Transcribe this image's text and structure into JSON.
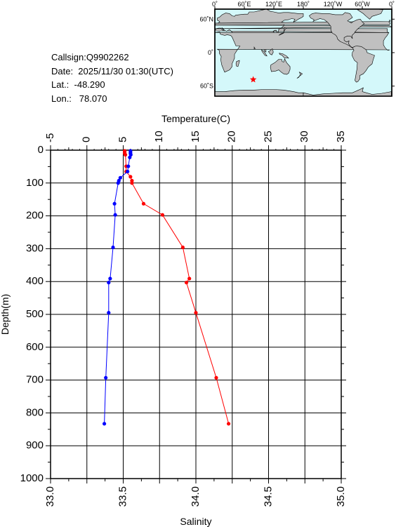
{
  "info": {
    "callsign": "Callsign:Q9902262",
    "date": "Date:  2025/11/30 01:30(UTC)",
    "lat": "Lat.:  -48.290",
    "lon": "Lon.:   78.070"
  },
  "map": {
    "top_labels": [
      "0˚",
      "60˚E",
      "120˚E",
      "180˚",
      "120˚W",
      "60˚W",
      "0˚"
    ],
    "right_labels": [
      "60˚N",
      "0˚",
      "60˚S"
    ],
    "ocean_color": "#d4f8fa",
    "land_color": "#c0c0c0",
    "marker_color": "#ff0000",
    "marker_lon": 78.07,
    "marker_lat": -48.29
  },
  "chart_data": {
    "type": "line",
    "depth_axis": {
      "label": "Depth(m)",
      "range": [
        0,
        1000
      ],
      "inverted": true,
      "ticks": [
        "0",
        "100",
        "200",
        "300",
        "400",
        "500",
        "600",
        "700",
        "800",
        "900",
        "1000"
      ]
    },
    "temperature_axis": {
      "label": "Temperature(C)",
      "range": [
        -5,
        35
      ],
      "ticks": [
        "-5",
        "0",
        "5",
        "10",
        "15",
        "20",
        "25",
        "30",
        "35"
      ]
    },
    "salinity_axis": {
      "label": "Salinity",
      "range": [
        33.0,
        35.0
      ],
      "ticks": [
        "33.0",
        "33.5",
        "34.0",
        "34.5",
        "35.0"
      ]
    },
    "grid": true,
    "series": [
      {
        "color": "#ff0000",
        "axis": "temperature",
        "points": [
          [
            5.2,
            2
          ],
          [
            5.2,
            6
          ],
          [
            5.2,
            10
          ],
          [
            5.3,
            14
          ],
          [
            5.4,
            49
          ],
          [
            5.4,
            65
          ],
          [
            6.0,
            81
          ],
          [
            6.2,
            93
          ],
          [
            6.2,
            100
          ],
          [
            7.8,
            163
          ],
          [
            10.4,
            197
          ],
          [
            13.2,
            296
          ],
          [
            14.1,
            391
          ],
          [
            13.7,
            403
          ],
          [
            15.0,
            495
          ],
          [
            17.8,
            693
          ],
          [
            19.5,
            833
          ]
        ]
      },
      {
        "color": "#0000ff",
        "axis": "salinity",
        "points": [
          [
            33.55,
            2
          ],
          [
            33.55,
            6
          ],
          [
            33.55,
            10
          ],
          [
            33.552,
            14
          ],
          [
            33.545,
            22
          ],
          [
            33.535,
            49
          ],
          [
            33.53,
            65
          ],
          [
            33.48,
            84
          ],
          [
            33.47,
            93
          ],
          [
            33.465,
            100
          ],
          [
            33.44,
            163
          ],
          [
            33.445,
            197
          ],
          [
            33.43,
            296
          ],
          [
            33.41,
            391
          ],
          [
            33.4,
            403
          ],
          [
            33.4,
            495
          ],
          [
            33.38,
            693
          ],
          [
            33.37,
            833
          ]
        ]
      }
    ]
  }
}
